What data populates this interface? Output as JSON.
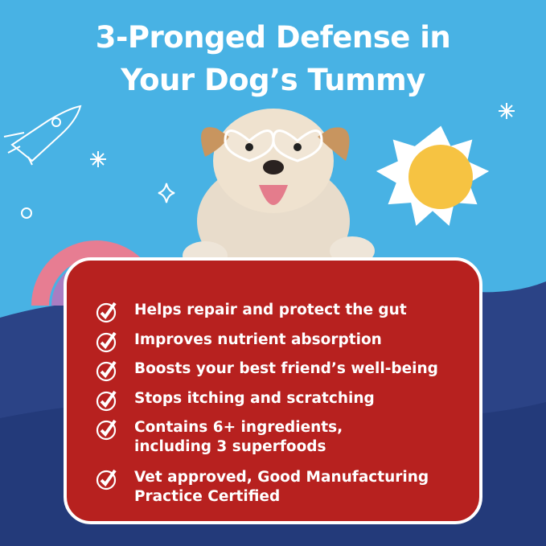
{
  "title": {
    "line1": "3-Pronged Defense in",
    "line2": "Your Dog’s Tummy"
  },
  "colors": {
    "sky": "#48b2e4",
    "hills": "#2b4386",
    "card": "#b7211f",
    "text": "#ffffff"
  },
  "benefits": [
    {
      "icon": "check-circle-icon",
      "lines": [
        "Helps repair and protect the gut"
      ]
    },
    {
      "icon": "check-circle-icon",
      "lines": [
        "Improves nutrient absorption"
      ]
    },
    {
      "icon": "check-circle-icon",
      "lines": [
        "Boosts your best friend’s well-being"
      ]
    },
    {
      "icon": "check-circle-icon",
      "lines": [
        "Stops itching and scratching"
      ]
    },
    {
      "icon": "check-circle-icon",
      "lines": [
        "Contains 6+ ingredients,",
        "including 3 superfoods"
      ]
    },
    {
      "icon": "check-circle-icon",
      "lines": [
        "Vet approved, Good Manufacturing",
        "Practice Certified"
      ]
    }
  ]
}
